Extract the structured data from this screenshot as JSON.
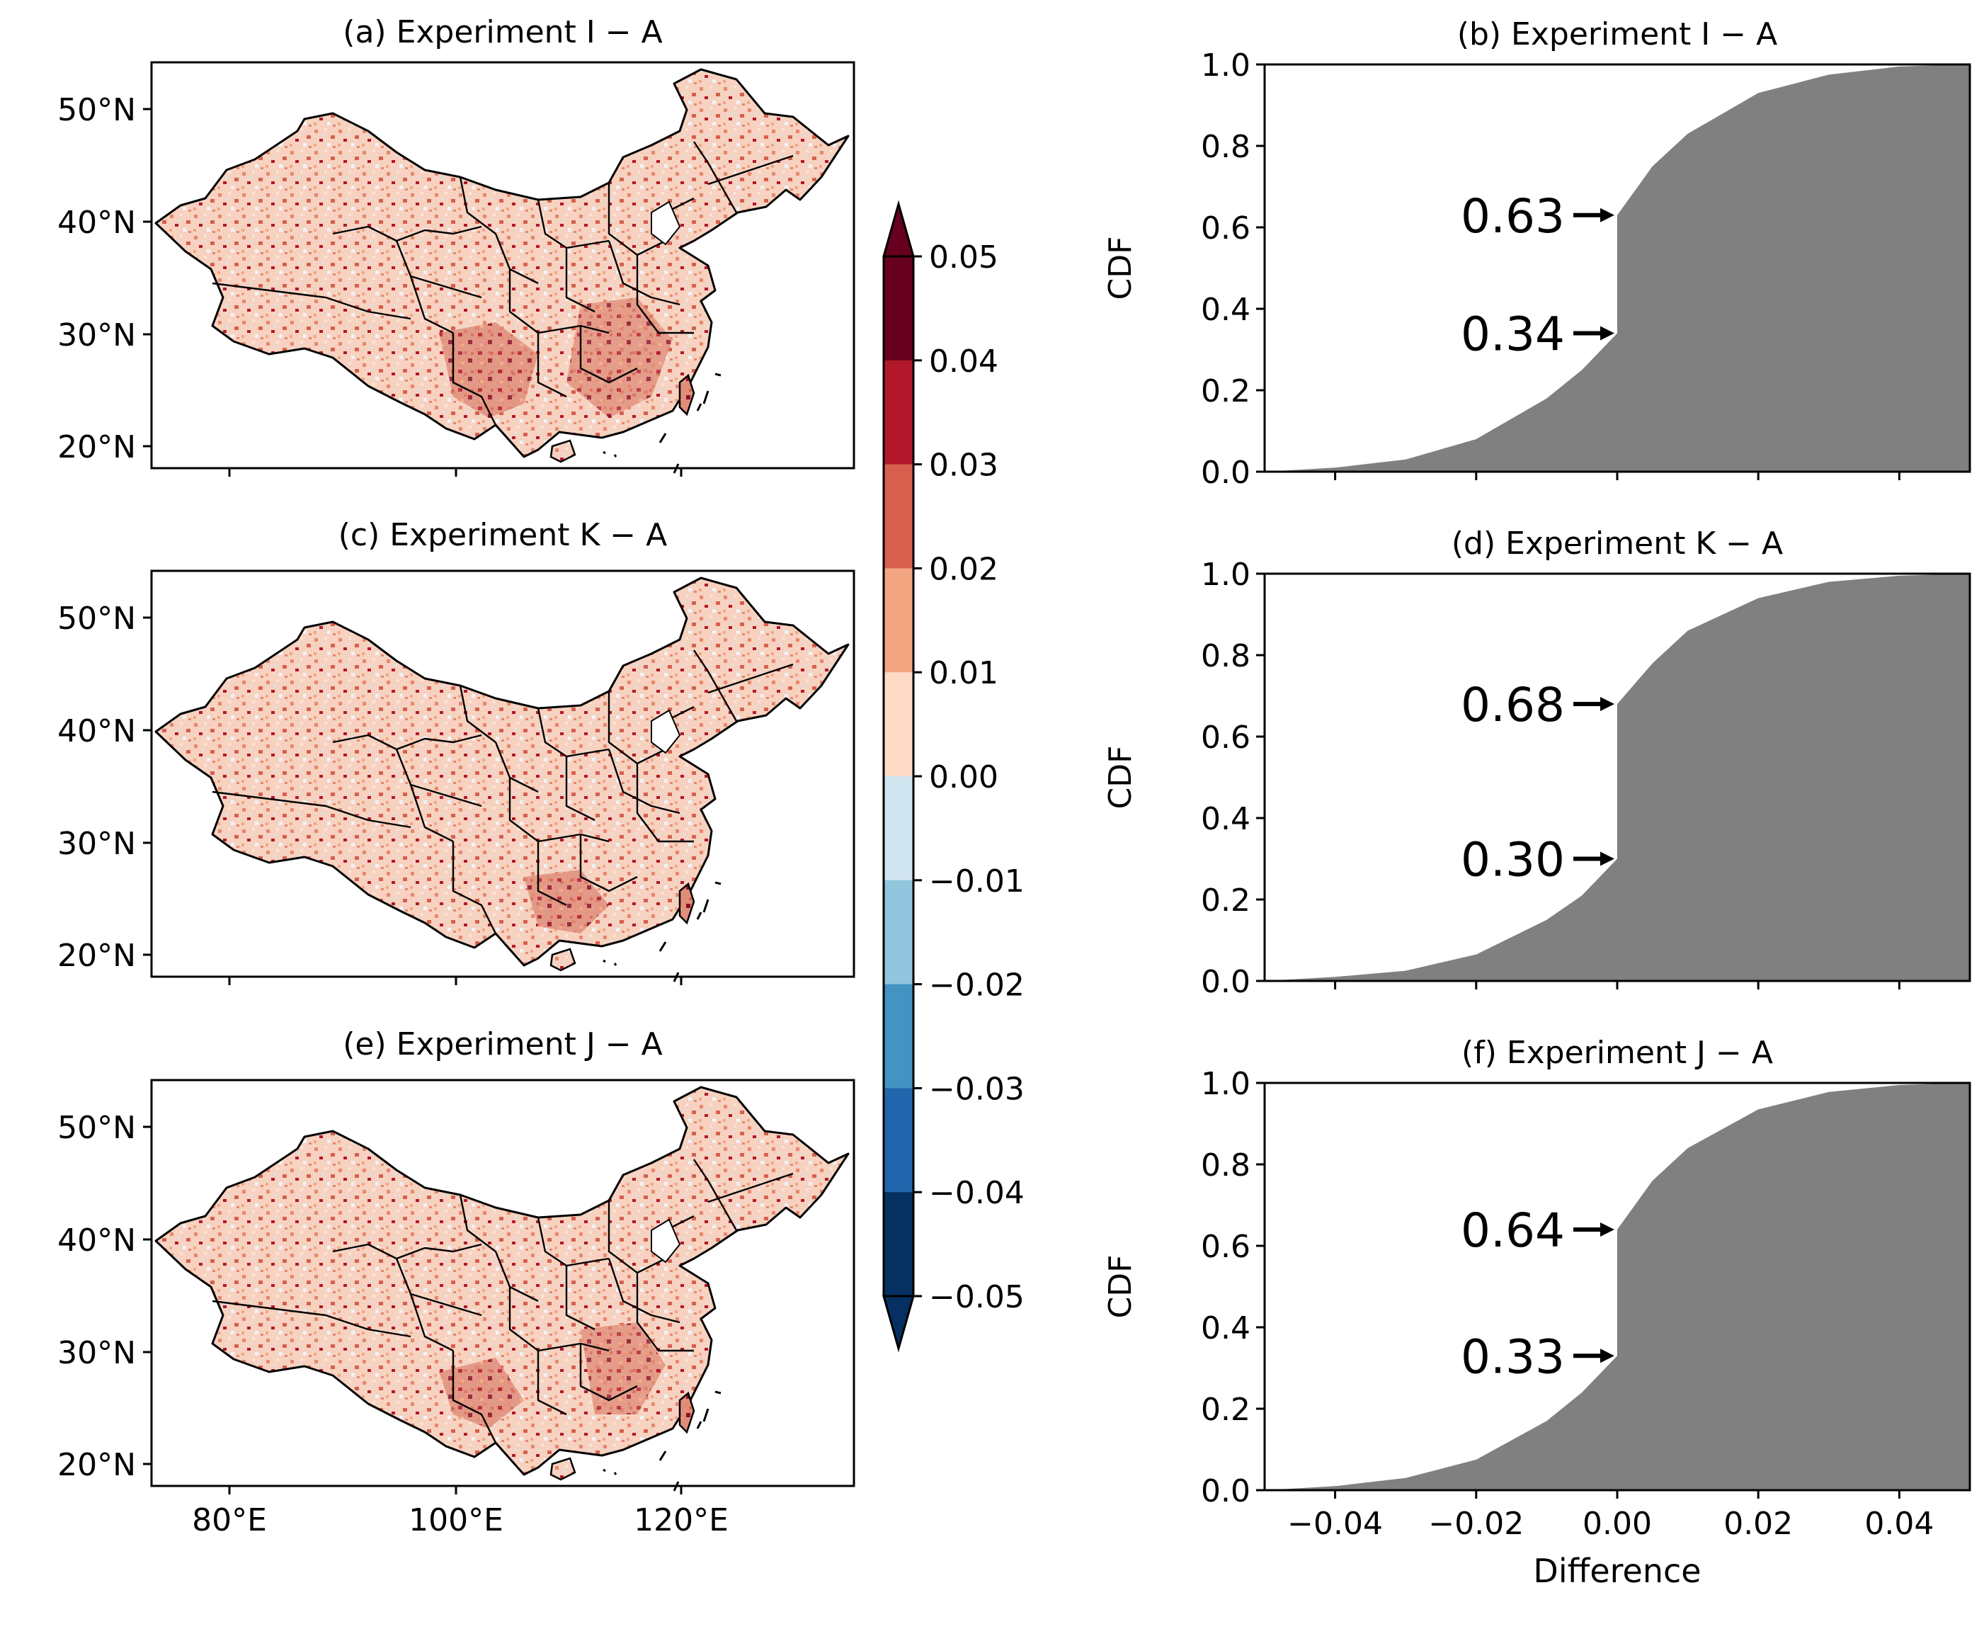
{
  "colorbar": {
    "ticks": [
      "0.05",
      "0.04",
      "0.03",
      "0.02",
      "0.01",
      "0.00",
      "−0.01",
      "−0.02",
      "−0.03",
      "−0.04",
      "−0.05"
    ],
    "colors": [
      "#67001f",
      "#b2182b",
      "#d6604d",
      "#f4a582",
      "#fddbc7",
      "#f7f7f7",
      "#d1e5f0",
      "#92c5de",
      "#4393c3",
      "#2166ac",
      "#053061"
    ],
    "over_color": "#67001f",
    "under_color": "#053061"
  },
  "maps": [
    {
      "title": "(a) Experiment I − A"
    },
    {
      "title": "(c) Experiment K − A"
    },
    {
      "title": "(e) Experiment J − A"
    }
  ],
  "map_axes": {
    "lat_ticks": [
      "50°N",
      "40°N",
      "30°N",
      "20°N"
    ],
    "lon_ticks": [
      "80°E",
      "100°E",
      "120°E"
    ]
  },
  "chart_data": [
    {
      "type": "area",
      "title": "(b) Experiment I − A",
      "xlabel": "",
      "ylabel": "CDF",
      "xlim": [
        -0.05,
        0.05
      ],
      "ylim": [
        0,
        1
      ],
      "x": [
        -0.05,
        -0.04,
        -0.03,
        -0.02,
        -0.01,
        -0.005,
        0.0,
        0.0,
        0.005,
        0.01,
        0.02,
        0.03,
        0.04,
        0.05
      ],
      "y": [
        0.0,
        0.01,
        0.03,
        0.08,
        0.18,
        0.25,
        0.34,
        0.63,
        0.75,
        0.83,
        0.93,
        0.975,
        0.995,
        1.0
      ],
      "annotations": [
        {
          "label": "0.63",
          "value": 0.63
        },
        {
          "label": "0.34",
          "value": 0.34
        }
      ]
    },
    {
      "type": "area",
      "title": "(d) Experiment K − A",
      "xlabel": "",
      "ylabel": "CDF",
      "xlim": [
        -0.05,
        0.05
      ],
      "ylim": [
        0,
        1
      ],
      "x": [
        -0.05,
        -0.04,
        -0.03,
        -0.02,
        -0.01,
        -0.005,
        0.0,
        0.0,
        0.005,
        0.01,
        0.02,
        0.03,
        0.04,
        0.05
      ],
      "y": [
        0.0,
        0.01,
        0.025,
        0.065,
        0.15,
        0.21,
        0.3,
        0.68,
        0.78,
        0.86,
        0.94,
        0.98,
        0.995,
        1.0
      ],
      "annotations": [
        {
          "label": "0.68",
          "value": 0.68
        },
        {
          "label": "0.30",
          "value": 0.3
        }
      ]
    },
    {
      "type": "area",
      "title": "(f) Experiment J − A",
      "xlabel": "Difference",
      "ylabel": "CDF",
      "xlim": [
        -0.05,
        0.05
      ],
      "ylim": [
        0,
        1
      ],
      "x": [
        -0.05,
        -0.04,
        -0.03,
        -0.02,
        -0.01,
        -0.005,
        0.0,
        0.0,
        0.005,
        0.01,
        0.02,
        0.03,
        0.04,
        0.05
      ],
      "y": [
        0.0,
        0.01,
        0.03,
        0.075,
        0.17,
        0.24,
        0.33,
        0.64,
        0.76,
        0.84,
        0.935,
        0.978,
        0.995,
        1.0
      ],
      "annotations": [
        {
          "label": "0.64",
          "value": 0.64
        },
        {
          "label": "0.33",
          "value": 0.33
        }
      ]
    }
  ],
  "cdf_axes": {
    "y_ticks": [
      {
        "v": 0.0,
        "label": "0.0"
      },
      {
        "v": 0.2,
        "label": "0.2"
      },
      {
        "v": 0.4,
        "label": "0.4"
      },
      {
        "v": 0.6,
        "label": "0.6"
      },
      {
        "v": 0.8,
        "label": "0.8"
      },
      {
        "v": 1.0,
        "label": "1.0"
      }
    ],
    "x_ticks": [
      {
        "v": -0.04,
        "label": "−0.04"
      },
      {
        "v": -0.02,
        "label": "−0.02"
      },
      {
        "v": 0.0,
        "label": "0.00"
      },
      {
        "v": 0.02,
        "label": "0.02"
      },
      {
        "v": 0.04,
        "label": "0.04"
      }
    ],
    "fill_color": "#808080"
  }
}
